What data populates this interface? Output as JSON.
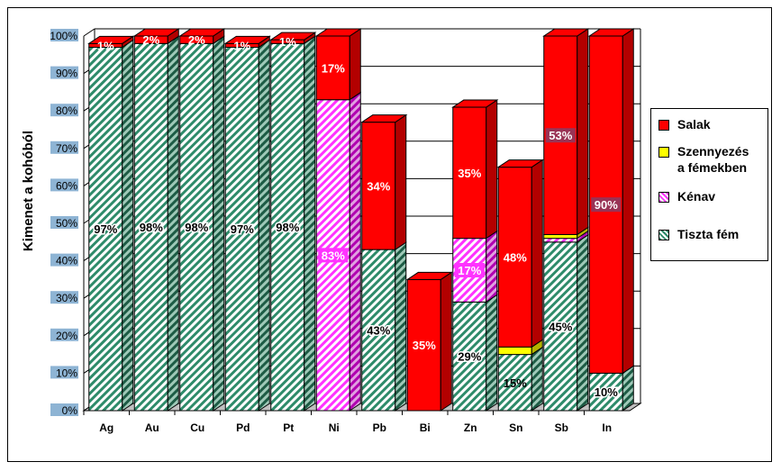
{
  "chart_data": {
    "type": "bar",
    "stacked": true,
    "percent": true,
    "three_d": true,
    "ylabel": "Kimenet a kohóból",
    "ylim": [
      0,
      100
    ],
    "yticks": [
      "0%",
      "10%",
      "20%",
      "30%",
      "40%",
      "50%",
      "60%",
      "70%",
      "80%",
      "90%",
      "100%"
    ],
    "grid": "horizontal",
    "legend_position": "right",
    "categories": [
      "Ag",
      "Au",
      "Cu",
      "Pd",
      "Pt",
      "Ni",
      "Pb",
      "Bi",
      "Zn",
      "Sn",
      "Sb",
      "In"
    ],
    "series": [
      {
        "name": "Tiszta fém",
        "color": "#ffffff",
        "pattern_color": "#2e8b6a",
        "values": [
          97,
          98,
          98,
          97,
          98,
          0,
          43,
          0,
          29,
          15,
          45,
          10
        ],
        "labels": [
          "97%",
          "98%",
          "98%",
          "97%",
          "98%",
          "",
          "43%",
          "",
          "29%",
          "15%",
          "45%",
          "10%"
        ]
      },
      {
        "name": "Kénav",
        "color": "#ff33ff",
        "values": [
          0,
          0,
          0,
          0,
          0,
          83,
          0,
          0,
          17,
          0,
          1,
          0
        ],
        "labels": [
          "",
          "",
          "",
          "",
          "",
          "83%",
          "",
          "",
          "17%",
          "",
          "",
          ""
        ]
      },
      {
        "name": "Szennyezés a fémekben",
        "color": "#ffff00",
        "values": [
          0,
          0,
          0,
          0,
          0,
          0,
          0,
          0,
          0,
          2,
          1,
          0
        ],
        "labels": [
          "",
          "",
          "",
          "",
          "",
          "",
          "",
          "",
          "",
          "",
          "",
          ""
        ]
      },
      {
        "name": "Salak",
        "color": "#ff0000",
        "values": [
          1,
          2,
          2,
          1,
          1,
          17,
          34,
          35,
          35,
          48,
          53,
          90
        ],
        "labels": [
          "1%",
          "2%",
          "2%",
          "1%",
          "1%",
          "17%",
          "34%",
          "35%",
          "35%",
          "48%",
          "53%",
          "90%"
        ]
      }
    ],
    "legend": [
      {
        "name": "Salak",
        "color": "#ff0000"
      },
      {
        "name_lines": [
          "Szennyezés",
          "a fémekben"
        ],
        "color": "#ffff00"
      },
      {
        "name": "Kénav",
        "color": "#ff33ff"
      },
      {
        "name": "Tiszta fém",
        "color": "#2e8b6a"
      }
    ]
  }
}
